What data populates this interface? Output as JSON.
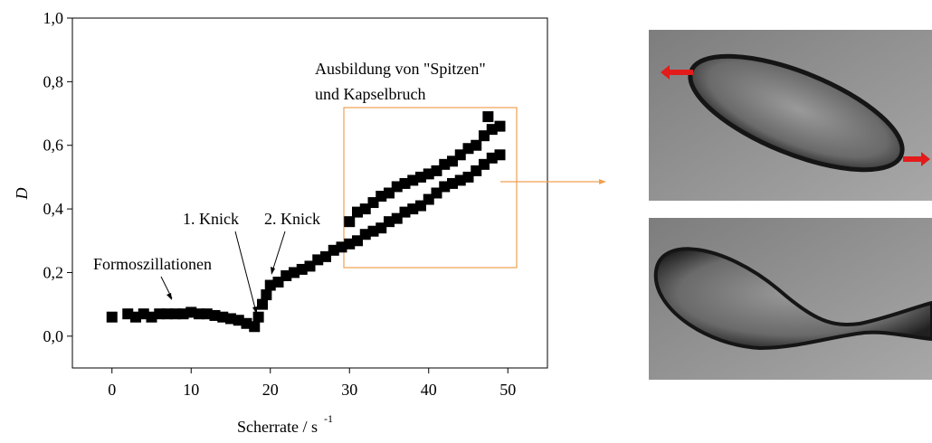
{
  "chart_data": {
    "type": "scatter",
    "xlabel": "Scherrate / s",
    "xlabel_superscript": "-1",
    "ylabel": "D",
    "xlim": [
      -5,
      55
    ],
    "ylim": [
      -0.1,
      1.0
    ],
    "xticks": [
      0,
      10,
      20,
      30,
      40,
      50
    ],
    "yticks": [
      {
        "value": 0,
        "label": "0,0"
      },
      {
        "value": 0.2,
        "label": "0,2"
      },
      {
        "value": 0.4,
        "label": "0,4"
      },
      {
        "value": 0.6,
        "label": "0,6"
      },
      {
        "value": 0.8,
        "label": "0,8"
      },
      {
        "value": 1.0,
        "label": "1,0"
      }
    ],
    "series": [
      {
        "color": "#000000",
        "x": [
          0,
          2,
          3,
          4,
          5,
          6,
          7,
          8,
          9,
          10,
          11,
          12,
          13,
          14,
          15,
          16,
          17,
          18,
          18.5,
          19,
          19.5,
          20,
          21,
          22,
          23,
          24,
          25,
          26,
          27,
          28,
          29,
          30,
          31,
          32,
          33,
          34,
          35,
          36,
          37,
          38,
          39,
          40,
          41,
          42,
          43,
          44,
          45,
          46,
          47,
          48,
          49
        ],
        "values": [
          0.06,
          0.07,
          0.06,
          0.07,
          0.06,
          0.07,
          0.07,
          0.07,
          0.07,
          0.075,
          0.07,
          0.07,
          0.065,
          0.06,
          0.055,
          0.05,
          0.04,
          0.03,
          0.06,
          0.1,
          0.13,
          0.16,
          0.17,
          0.19,
          0.2,
          0.21,
          0.22,
          0.24,
          0.25,
          0.27,
          0.28,
          0.29,
          0.3,
          0.32,
          0.33,
          0.34,
          0.36,
          0.37,
          0.39,
          0.4,
          0.41,
          0.43,
          0.45,
          0.47,
          0.48,
          0.49,
          0.5,
          0.52,
          0.54,
          0.56,
          0.57
        ]
      },
      {
        "color": "#000000",
        "x": [
          30,
          31,
          32,
          33,
          34,
          35,
          36,
          37,
          38,
          39,
          40,
          41,
          42,
          43,
          44,
          45,
          46,
          47,
          47.5,
          48,
          49
        ],
        "values": [
          0.36,
          0.39,
          0.4,
          0.42,
          0.44,
          0.45,
          0.47,
          0.48,
          0.49,
          0.5,
          0.51,
          0.52,
          0.54,
          0.55,
          0.57,
          0.59,
          0.6,
          0.63,
          0.69,
          0.65,
          0.66
        ]
      }
    ],
    "annotations": [
      {
        "text": "Formoszillationen"
      },
      {
        "text": "1. Knick"
      },
      {
        "text": "2. Knick"
      },
      {
        "lines": [
          "Ausbildung von \"Spitzen\"",
          "und Kapselbruch"
        ]
      }
    ]
  }
}
